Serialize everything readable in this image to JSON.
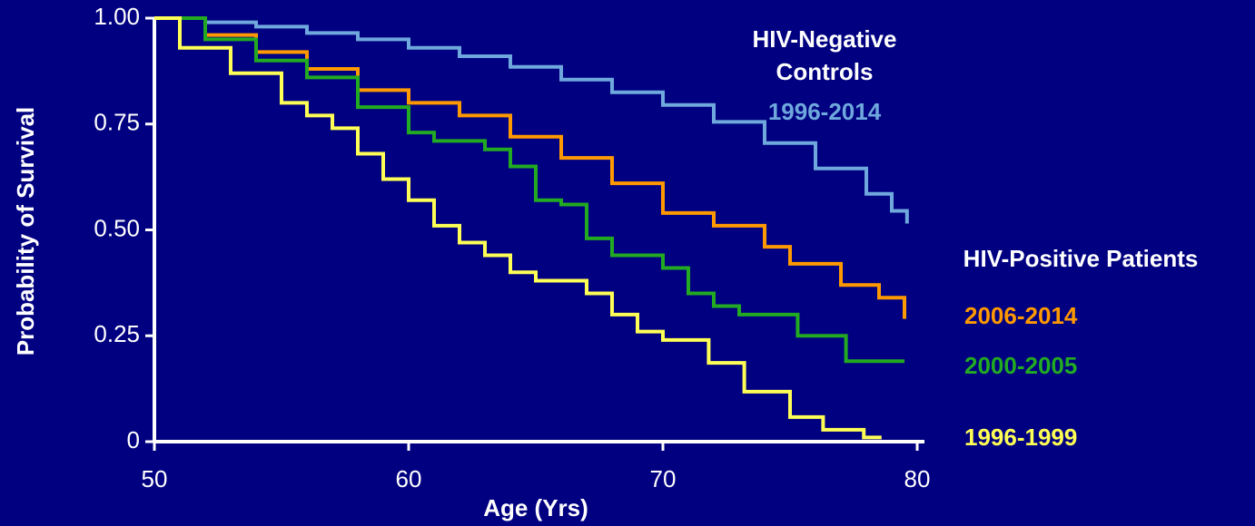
{
  "chart_data": {
    "type": "line",
    "step": true,
    "xlabel": "Age (Yrs)",
    "ylabel": "Probability of Survival",
    "xlim": [
      50,
      80
    ],
    "xticks": [
      50,
      60,
      70,
      80
    ],
    "ylim": [
      0,
      1
    ],
    "yticks": [
      0,
      {
        "value": 0.25,
        "label": "0.25"
      },
      {
        "value": 0.5,
        "label": "0.50"
      },
      {
        "value": 0.75,
        "label": "0.75"
      },
      {
        "value": 1,
        "label": "1.00"
      }
    ],
    "annotations": [
      {
        "lines": [
          "HIV-Negative",
          "Controls"
        ]
      },
      {
        "lines": [
          "HIV-Positive Patients"
        ]
      }
    ],
    "series": [
      {
        "name": "1996-2014",
        "color": "#6fa8dc",
        "x": [
          50,
          52,
          54,
          56,
          58,
          60,
          62,
          64,
          66,
          68,
          70,
          72,
          74,
          76,
          78,
          79,
          79.6
        ],
        "values": [
          1.0,
          0.99,
          0.98,
          0.965,
          0.95,
          0.93,
          0.91,
          0.885,
          0.855,
          0.825,
          0.795,
          0.755,
          0.705,
          0.645,
          0.585,
          0.545,
          0.515
        ]
      },
      {
        "name": "2006-2014",
        "color": "#ff9900",
        "x": [
          50,
          52,
          54,
          56,
          58,
          60,
          62,
          64,
          66,
          68,
          70,
          72,
          74,
          75,
          77,
          78.5,
          79.5
        ],
        "values": [
          1.0,
          0.96,
          0.92,
          0.88,
          0.83,
          0.8,
          0.77,
          0.72,
          0.67,
          0.61,
          0.54,
          0.51,
          0.46,
          0.42,
          0.37,
          0.34,
          0.29
        ]
      },
      {
        "name": "2000-2005",
        "color": "#22aa22",
        "x": [
          50,
          52,
          54,
          56,
          58,
          60,
          61,
          63,
          64,
          65,
          66,
          67,
          68,
          70,
          71,
          72,
          73,
          75.3,
          77.2,
          79.5
        ],
        "values": [
          1.0,
          0.95,
          0.9,
          0.86,
          0.79,
          0.73,
          0.71,
          0.69,
          0.65,
          0.57,
          0.56,
          0.48,
          0.44,
          0.41,
          0.35,
          0.32,
          0.3,
          0.25,
          0.19,
          0.19
        ]
      },
      {
        "name": "1996-1999",
        "color": "#ffff55",
        "x": [
          50,
          51,
          53,
          55,
          56,
          57,
          58,
          59,
          60,
          61,
          62,
          63,
          64,
          65,
          67,
          68,
          69,
          70,
          71.8,
          73.2,
          75,
          76.3,
          77.9,
          78.6
        ],
        "values": [
          1.0,
          0.93,
          0.87,
          0.8,
          0.77,
          0.74,
          0.68,
          0.62,
          0.57,
          0.51,
          0.47,
          0.44,
          0.4,
          0.38,
          0.35,
          0.3,
          0.26,
          0.24,
          0.186,
          0.118,
          0.058,
          0.028,
          0.01,
          0.01
        ]
      }
    ]
  }
}
